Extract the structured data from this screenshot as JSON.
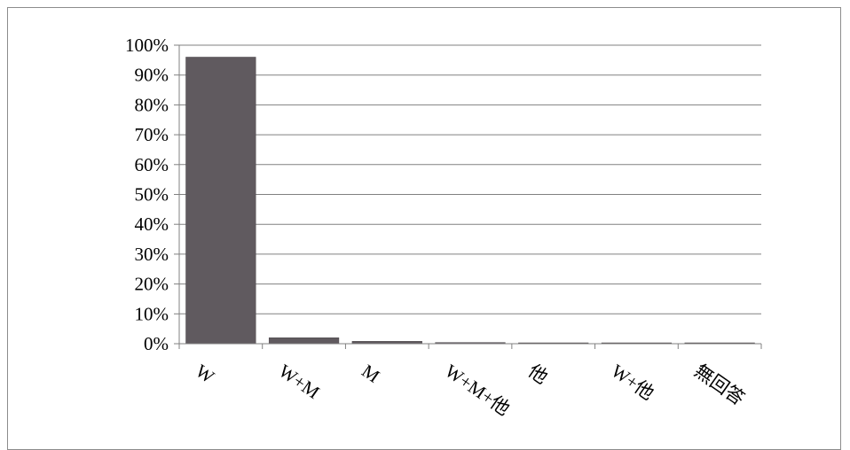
{
  "chart_data": {
    "type": "bar",
    "categories": [
      "W",
      "W+M",
      "M",
      "W+M+他",
      "他",
      "W+他",
      "無回答"
    ],
    "values": [
      96,
      2,
      0.8,
      0.4,
      0.2,
      0.2,
      0.2
    ],
    "ylim": [
      0,
      100
    ],
    "y_ticks": [
      "0%",
      "10%",
      "20%",
      "30%",
      "40%",
      "50%",
      "60%",
      "70%",
      "80%",
      "90%",
      "100%"
    ],
    "grid": true,
    "legend": "none",
    "colors": {
      "bar": "#605a5f",
      "grid": "#808080",
      "axis": "#808080"
    }
  }
}
